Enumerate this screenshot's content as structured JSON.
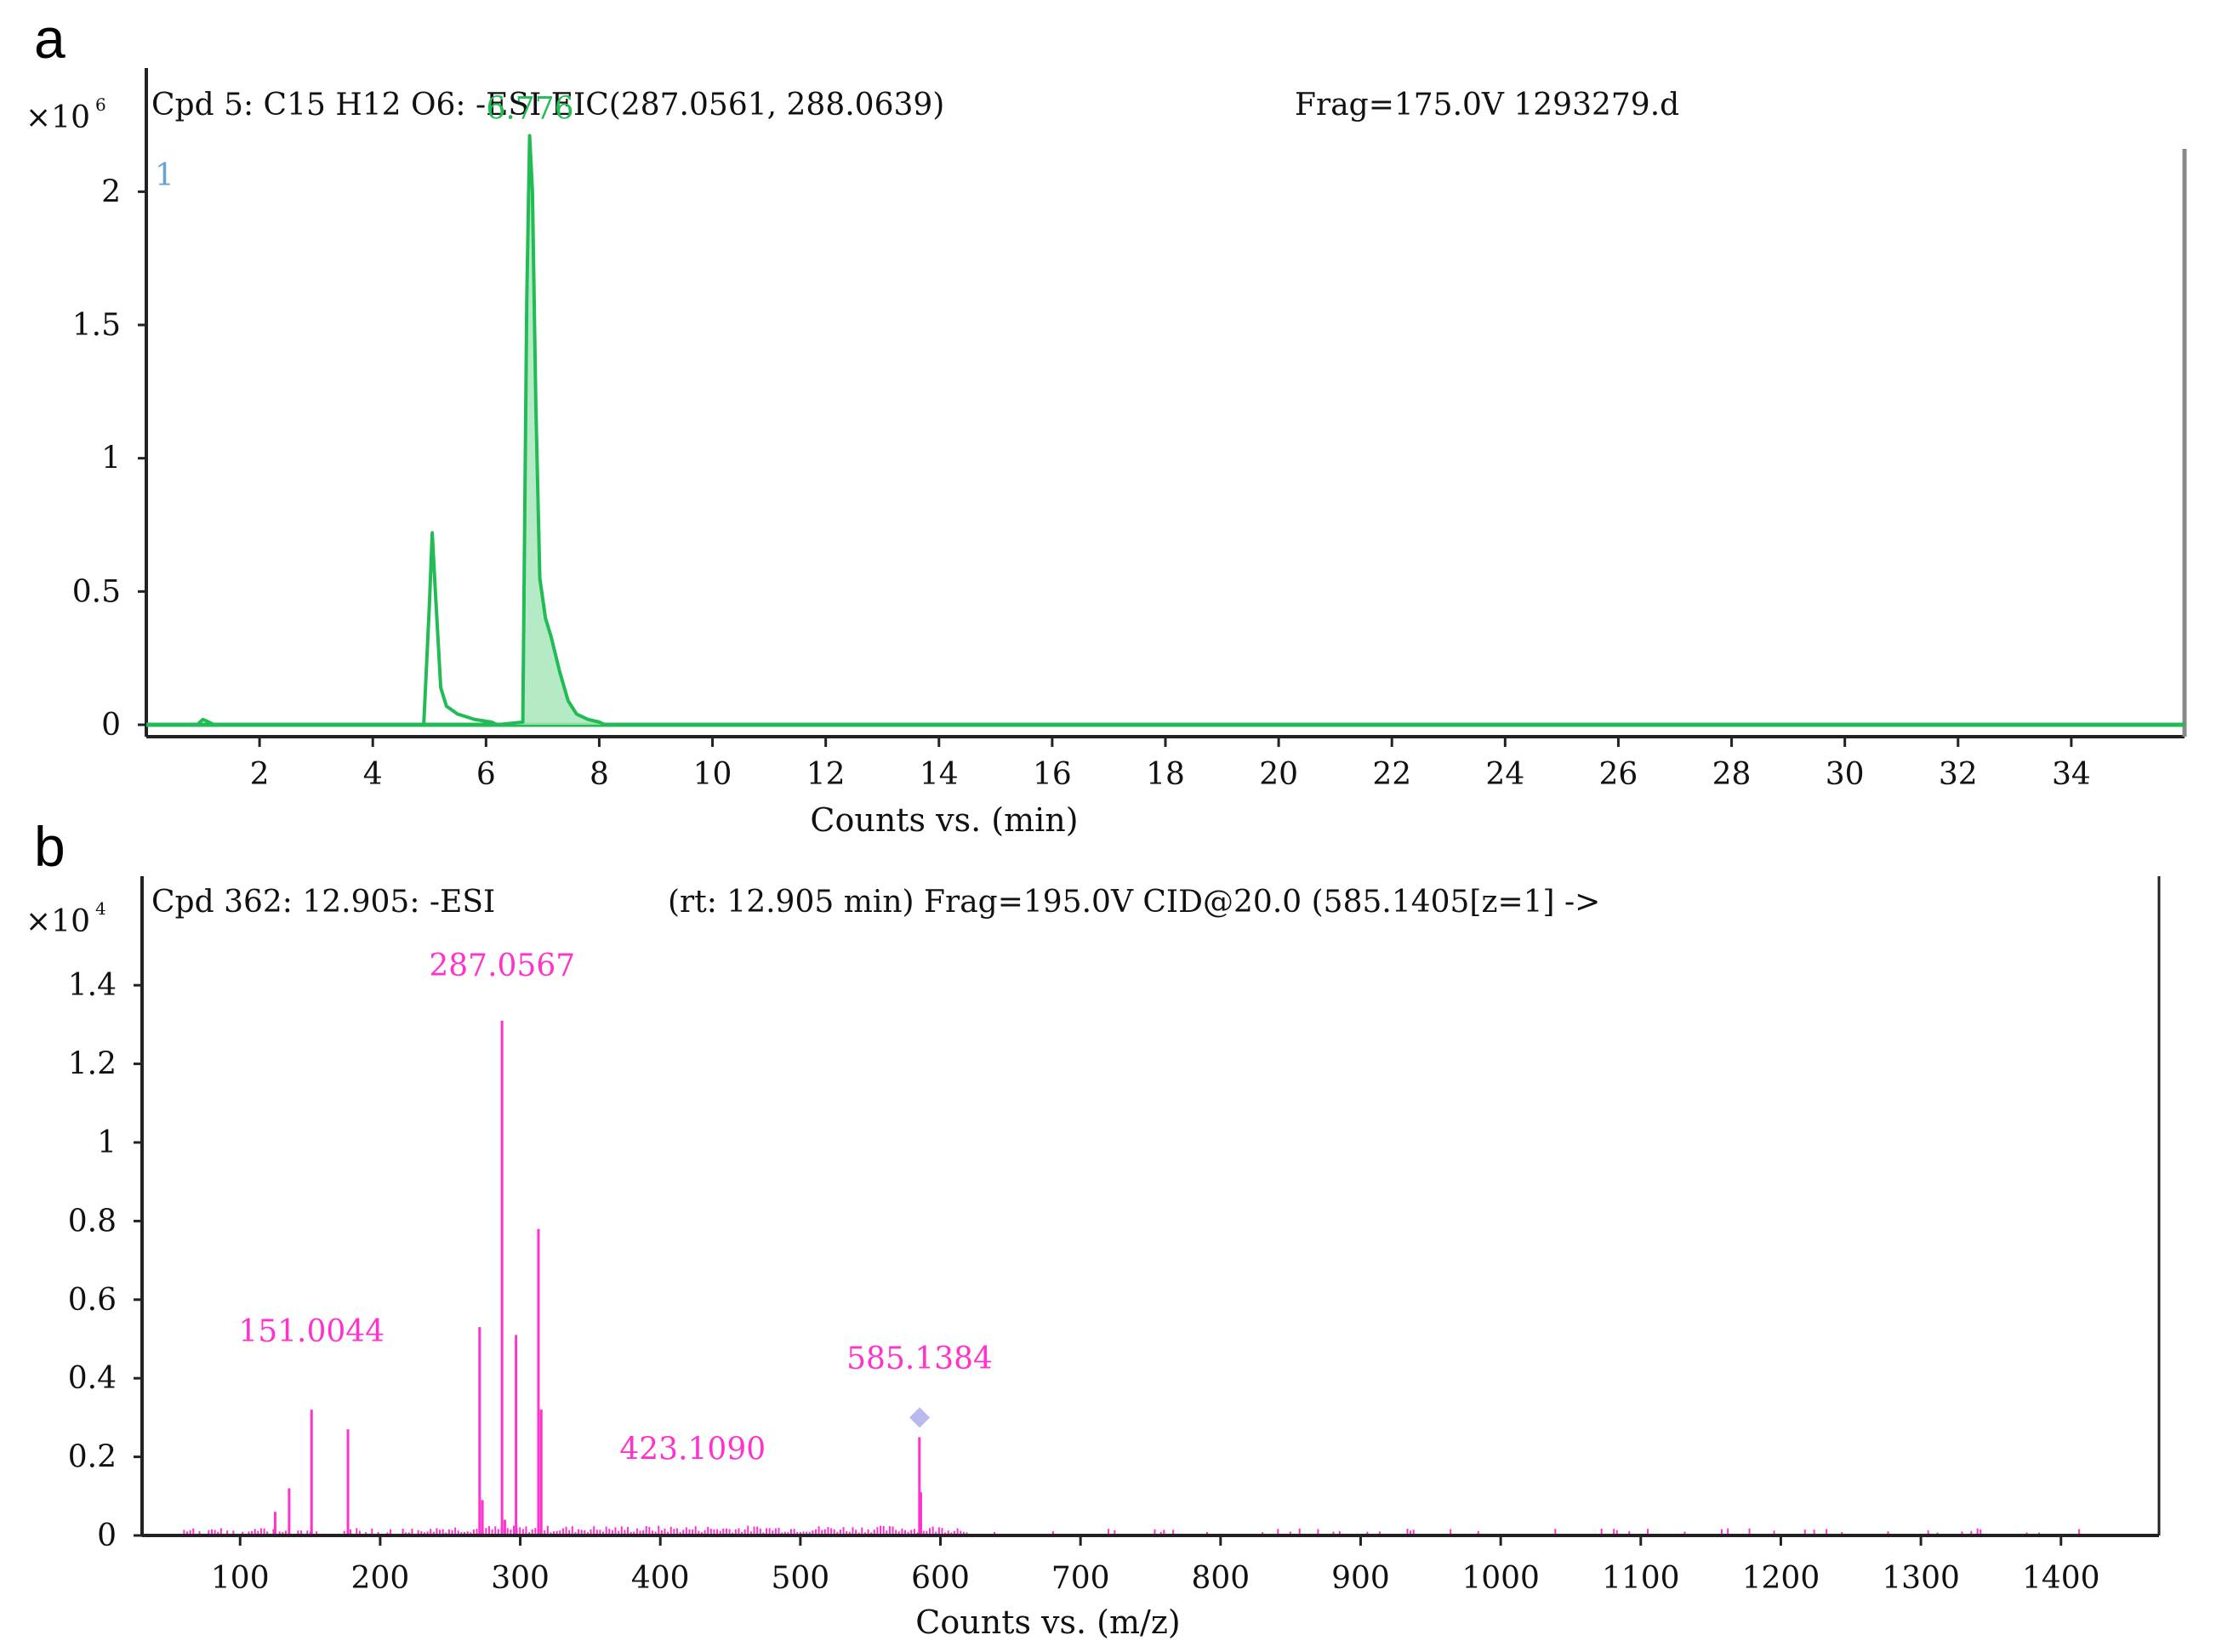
{
  "chart_data": [
    {
      "type": "line",
      "panel_label": "a",
      "header_left": "Cpd 5: C15 H12 O6: -ESI EIC(287.0561, 288.0639)",
      "header_right": "Frag=175.0V 1293279.d",
      "trace_index": "1",
      "multiplier_base": "×10",
      "multiplier_exp": "6",
      "xlabel": "Counts vs. (min)",
      "xlim": [
        0,
        36
      ],
      "ylim": [
        0,
        2.4
      ],
      "x_ticks": [
        2,
        4,
        6,
        8,
        10,
        12,
        14,
        16,
        18,
        20,
        22,
        24,
        26,
        28,
        30,
        32,
        34
      ],
      "x_tick_labels": [
        "2",
        "4",
        "6",
        "8",
        "10",
        "12",
        "14",
        "16",
        "18",
        "20",
        "22",
        "24",
        "26",
        "28",
        "30",
        "32",
        "34"
      ],
      "y_ticks": [
        0,
        0.5,
        1,
        1.5,
        2
      ],
      "y_tick_labels": [
        "0",
        "0.5",
        "1",
        "1.5",
        "2"
      ],
      "series": [
        {
          "color": "#22bb55",
          "x": [
            0,
            0.9,
            1.0,
            1.1,
            1.2,
            4.9,
            5.0,
            5.05,
            5.1,
            5.2,
            5.3,
            5.5,
            5.8,
            6.1,
            6.2,
            6.65,
            6.72,
            6.77,
            6.82,
            6.88,
            6.95,
            7.05,
            7.15,
            7.3,
            7.45,
            7.6,
            7.8,
            8.0,
            8.1,
            36
          ],
          "y": [
            0,
            0,
            0.02,
            0.01,
            0,
            0,
            0.45,
            0.72,
            0.52,
            0.14,
            0.07,
            0.04,
            0.02,
            0.01,
            0,
            0.01,
            1.6,
            2.21,
            2.0,
            1.2,
            0.55,
            0.4,
            0.33,
            0.2,
            0.09,
            0.04,
            0.02,
            0.01,
            0,
            0
          ]
        }
      ],
      "peak_labels": [
        {
          "x": 6.776,
          "y": 2.21,
          "text": "6.776"
        }
      ]
    },
    {
      "type": "bar",
      "panel_label": "b",
      "header_left": "Cpd 362: 12.905: -ESI",
      "header_right": "(rt: 12.905 min) Frag=195.0V CID@20.0 (585.1405[z=1] ->",
      "multiplier_base": "×10",
      "multiplier_exp": "4",
      "xlabel": "Counts vs. (m/z)",
      "xlim": [
        30,
        1470
      ],
      "ylim": [
        0,
        1.5
      ],
      "x_ticks": [
        100,
        200,
        300,
        400,
        500,
        600,
        700,
        800,
        900,
        1000,
        1100,
        1200,
        1300,
        1400
      ],
      "x_tick_labels": [
        "100",
        "200",
        "300",
        "400",
        "500",
        "600",
        "700",
        "800",
        "900",
        "1000",
        "1100",
        "1200",
        "1300",
        "1400"
      ],
      "y_ticks": [
        0,
        0.2,
        0.4,
        0.6,
        0.8,
        1,
        1.2,
        1.4
      ],
      "y_tick_labels": [
        "0",
        "0.2",
        "0.4",
        "0.6",
        "0.8",
        "1",
        "1.2",
        "1.4"
      ],
      "series": [
        {
          "color": "#ff33cc",
          "x": [
            125,
            135,
            151,
            177,
            271,
            273,
            287,
            289,
            297,
            313,
            315,
            585,
            586
          ],
          "y": [
            0.06,
            0.12,
            0.32,
            0.27,
            0.53,
            0.09,
            1.31,
            0.04,
            0.51,
            0.78,
            0.32,
            0.25,
            0.11
          ]
        }
      ],
      "peak_labels": [
        {
          "x": 287.0567,
          "text": "287.0567",
          "y": 1.45
        },
        {
          "x": 151.0044,
          "text": "151.0044",
          "y": 0.52
        },
        {
          "x": 423.109,
          "text": "423.1090",
          "y": 0.22
        },
        {
          "x": 585.1384,
          "text": "585.1384",
          "y": 0.45
        }
      ],
      "precursor_marker": {
        "x": 585.1405,
        "y": 0.3,
        "color": "#b9b9ee"
      }
    }
  ]
}
